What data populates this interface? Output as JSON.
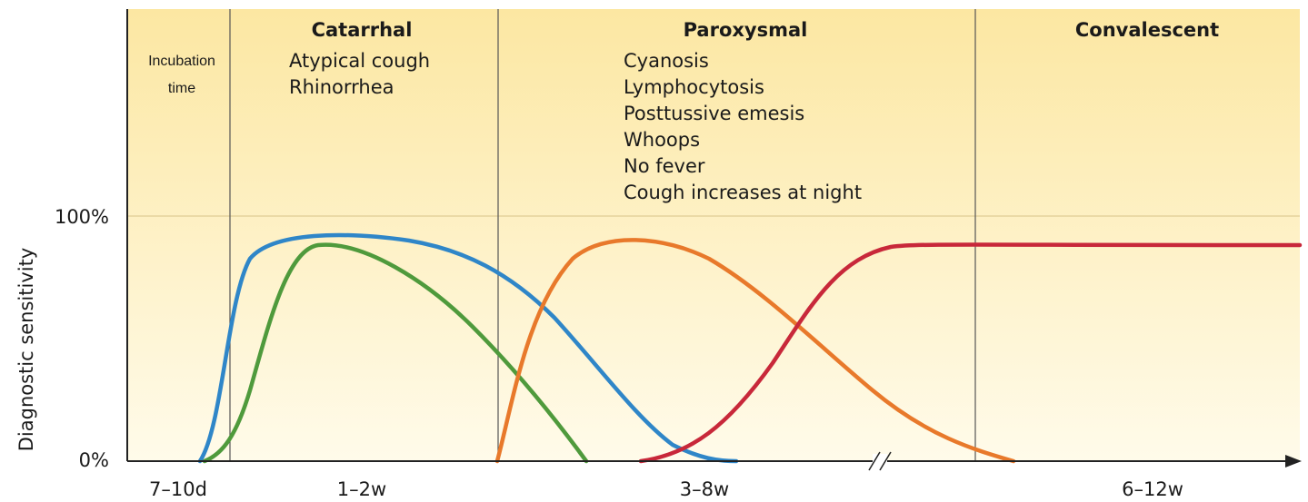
{
  "y_axis": {
    "label": "Diagnostic sensitivity",
    "ticks": [
      "100%",
      "0%"
    ]
  },
  "phases": [
    {
      "title_lines": [
        "Incubation",
        "time"
      ]
    },
    {
      "title": "Catarrhal",
      "signs": [
        "Atypical cough",
        "Rhinorrhea"
      ]
    },
    {
      "title": "Paroxysmal",
      "signs": [
        "Cyanosis",
        "Lymphocytosis",
        "Posttussive emesis",
        "Whoops",
        "No fever",
        "Cough increases at night"
      ]
    },
    {
      "title": "Convalescent"
    }
  ],
  "x_labels": [
    "7–10d",
    "1–2w",
    "3–8w",
    "6–12w"
  ]
}
